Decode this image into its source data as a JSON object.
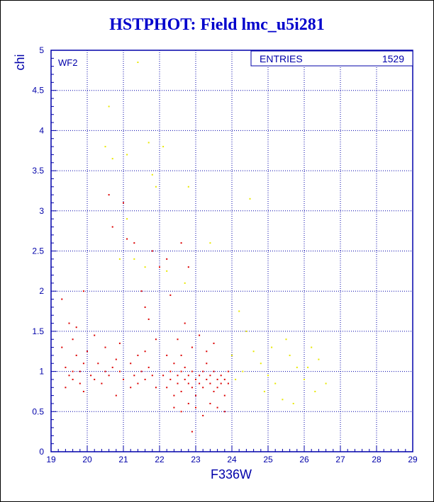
{
  "title": "HSTPHOT: Field lmc_u5i281",
  "panel_label": "WF2",
  "stats_box": {
    "label": "ENTRIES",
    "value": "1529"
  },
  "colors": {
    "frame": "#0000aa",
    "title": "#0000cc",
    "grid": "#0000aa",
    "points_primary": "#dd0000",
    "points_secondary": "#e8e800"
  },
  "chart_data": {
    "type": "scatter",
    "title": "HSTPHOT: Field lmc_u5i281",
    "xlabel": "F336W",
    "ylabel": "chi",
    "xlim": [
      19,
      29
    ],
    "ylim": [
      0,
      5
    ],
    "x_ticks": [
      19,
      20,
      21,
      22,
      23,
      24,
      25,
      26,
      27,
      28,
      29
    ],
    "x_tick_labels": [
      "19",
      "20",
      "21",
      "22",
      "23",
      "24",
      "25",
      "26",
      "27",
      "28",
      "29"
    ],
    "y_ticks": [
      0,
      0.5,
      1,
      1.5,
      2,
      2.5,
      3,
      3.5,
      4,
      4.5,
      5
    ],
    "y_tick_labels": [
      "0",
      "0.5",
      "1",
      "1.5",
      "2",
      "2.5",
      "3",
      "3.5",
      "4",
      "4.5",
      "5"
    ],
    "grid": true,
    "entries": 1529,
    "series": [
      {
        "color": "#dd0000",
        "points": [
          [
            19.3,
            1.9
          ],
          [
            19.5,
            1.6
          ],
          [
            19.6,
            1.4
          ],
          [
            19.7,
            1.55
          ],
          [
            19.9,
            2.0
          ],
          [
            19.4,
            1.05
          ],
          [
            19.5,
            0.95
          ],
          [
            19.6,
            0.9
          ],
          [
            19.7,
            1.2
          ],
          [
            19.8,
            0.85
          ],
          [
            19.9,
            1.1
          ],
          [
            19.3,
            1.3
          ],
          [
            19.4,
            0.8
          ],
          [
            19.6,
            1.0
          ],
          [
            19.8,
            1.0
          ],
          [
            19.9,
            0.75
          ],
          [
            20.0,
            1.25
          ],
          [
            20.1,
            0.95
          ],
          [
            20.2,
            0.9
          ],
          [
            20.2,
            1.45
          ],
          [
            20.3,
            1.1
          ],
          [
            20.4,
            0.85
          ],
          [
            20.5,
            1.0
          ],
          [
            20.5,
            1.3
          ],
          [
            20.6,
            0.95
          ],
          [
            20.7,
            1.05
          ],
          [
            20.8,
            1.15
          ],
          [
            20.8,
            0.7
          ],
          [
            20.9,
            1.0
          ],
          [
            20.9,
            1.35
          ],
          [
            21.0,
            0.9
          ],
          [
            21.0,
            3.1
          ],
          [
            20.7,
            2.8
          ],
          [
            20.6,
            3.2
          ],
          [
            21.1,
            2.65
          ],
          [
            21.3,
            2.6
          ],
          [
            21.5,
            2.0
          ],
          [
            21.6,
            1.8
          ],
          [
            21.7,
            1.65
          ],
          [
            21.2,
            1.1
          ],
          [
            21.3,
            0.95
          ],
          [
            21.4,
            0.85
          ],
          [
            21.5,
            1.0
          ],
          [
            21.6,
            0.9
          ],
          [
            21.7,
            1.05
          ],
          [
            21.8,
            0.95
          ],
          [
            21.9,
            0.8
          ],
          [
            21.2,
            0.8
          ],
          [
            21.4,
            1.2
          ],
          [
            21.6,
            1.25
          ],
          [
            21.8,
            2.5
          ],
          [
            21.9,
            1.4
          ],
          [
            22.0,
            2.3
          ],
          [
            22.2,
            2.4
          ],
          [
            22.3,
            1.95
          ],
          [
            22.6,
            2.6
          ],
          [
            22.8,
            2.3
          ],
          [
            22.1,
            0.95
          ],
          [
            22.2,
            0.8
          ],
          [
            22.3,
            1.0
          ],
          [
            22.3,
            0.9
          ],
          [
            22.4,
            1.1
          ],
          [
            22.4,
            0.7
          ],
          [
            22.5,
            0.85
          ],
          [
            22.5,
            0.95
          ],
          [
            22.6,
            1.0
          ],
          [
            22.6,
            0.75
          ],
          [
            22.7,
            0.9
          ],
          [
            22.7,
            1.05
          ],
          [
            22.8,
            0.85
          ],
          [
            22.8,
            0.95
          ],
          [
            22.9,
            1.0
          ],
          [
            22.9,
            0.8
          ],
          [
            23.0,
            0.9
          ],
          [
            23.0,
            0.7
          ],
          [
            23.1,
            0.95
          ],
          [
            23.1,
            0.85
          ],
          [
            23.2,
            1.0
          ],
          [
            23.2,
            0.8
          ],
          [
            23.3,
            0.9
          ],
          [
            23.3,
            1.1
          ],
          [
            23.4,
            0.85
          ],
          [
            23.4,
            0.95
          ],
          [
            23.5,
            0.75
          ],
          [
            23.5,
            1.0
          ],
          [
            23.6,
            0.9
          ],
          [
            23.6,
            0.8
          ],
          [
            23.7,
            0.95
          ],
          [
            23.7,
            0.85
          ],
          [
            23.8,
            0.9
          ],
          [
            23.8,
            0.7
          ],
          [
            23.9,
            0.85
          ],
          [
            23.9,
            1.0
          ],
          [
            22.5,
            1.4
          ],
          [
            22.7,
            1.6
          ],
          [
            22.9,
            1.3
          ],
          [
            23.1,
            1.45
          ],
          [
            23.3,
            1.25
          ],
          [
            23.5,
            1.35
          ],
          [
            22.2,
            1.2
          ],
          [
            22.4,
            0.55
          ],
          [
            22.6,
            0.5
          ],
          [
            22.8,
            0.6
          ],
          [
            23.0,
            0.55
          ],
          [
            23.2,
            0.45
          ],
          [
            23.4,
            0.6
          ],
          [
            23.6,
            0.55
          ],
          [
            23.8,
            0.5
          ],
          [
            22.9,
            0.25
          ],
          [
            22.6,
            1.2
          ]
        ]
      },
      {
        "color": "#e8e800",
        "points": [
          [
            21.4,
            4.85
          ],
          [
            20.6,
            4.3
          ],
          [
            20.5,
            3.8
          ],
          [
            20.7,
            3.65
          ],
          [
            21.1,
            3.7
          ],
          [
            21.7,
            3.85
          ],
          [
            21.8,
            3.45
          ],
          [
            21.9,
            3.3
          ],
          [
            22.1,
            3.8
          ],
          [
            22.8,
            3.3
          ],
          [
            24.5,
            3.15
          ],
          [
            21.1,
            2.9
          ],
          [
            20.9,
            2.4
          ],
          [
            21.3,
            2.4
          ],
          [
            21.6,
            2.3
          ],
          [
            22.2,
            2.25
          ],
          [
            22.7,
            2.1
          ],
          [
            23.4,
            2.6
          ],
          [
            24.2,
            1.75
          ],
          [
            24.4,
            1.5
          ],
          [
            24.6,
            1.25
          ],
          [
            24.8,
            1.1
          ],
          [
            25.0,
            0.95
          ],
          [
            25.2,
            0.85
          ],
          [
            25.4,
            0.65
          ],
          [
            25.6,
            1.2
          ],
          [
            25.8,
            1.05
          ],
          [
            26.0,
            0.9
          ],
          [
            26.2,
            1.3
          ],
          [
            26.4,
            1.15
          ],
          [
            26.6,
            0.85
          ],
          [
            25.5,
            1.4
          ],
          [
            24.9,
            0.75
          ],
          [
            24.3,
            1.0
          ],
          [
            24.1,
            0.9
          ],
          [
            24.0,
            1.2
          ],
          [
            25.1,
            1.3
          ],
          [
            26.3,
            0.75
          ],
          [
            25.7,
            0.6
          ],
          [
            26.1,
            1.05
          ]
        ]
      }
    ]
  }
}
